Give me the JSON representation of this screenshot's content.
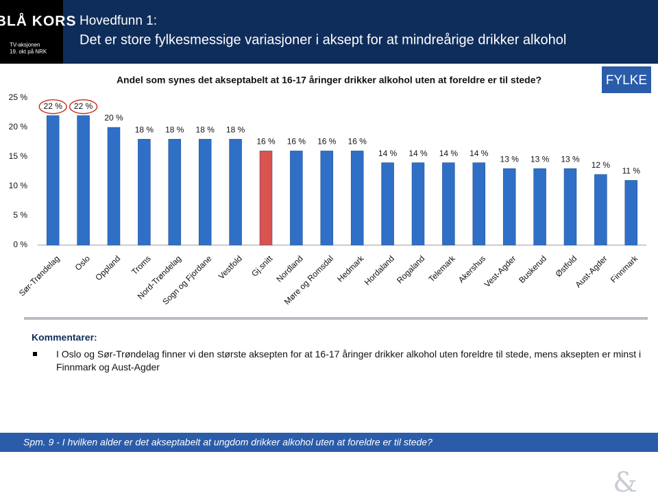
{
  "header": {
    "logo": "+BLÅ KORS",
    "logo_sub1": "TV-aksjonen",
    "logo_sub2": "19. okt på NRK",
    "title1": "Hovedfunn 1:",
    "title2": "Det er store fylkesmessige variasjoner i aksept for at mindreårige drikker alkohol"
  },
  "badge": "FYLKE",
  "chart_data": {
    "type": "bar",
    "title": "Andel som synes det akseptabelt at 16-17 åringer drikker alkohol uten at foreldre er til stede?",
    "categories": [
      "Sør-Trøndelag",
      "Oslo",
      "Oppland",
      "Troms",
      "Nord-Trøndelag",
      "Sogn og Fjordane",
      "Vestfold",
      "Gj.snitt",
      "Nordland",
      "Møre og Romsdal",
      "Hedmark",
      "Hordaland",
      "Rogaland",
      "Telemark",
      "Akershus",
      "Vest-Agder",
      "Buskerud",
      "Østfold",
      "Aust-Agder",
      "Finnmark"
    ],
    "values": [
      22,
      22,
      20,
      18,
      18,
      18,
      18,
      16,
      16,
      16,
      16,
      14,
      14,
      14,
      14,
      13,
      13,
      13,
      12,
      11
    ],
    "value_labels": [
      "22 %",
      "22 %",
      "20 %",
      "18 %",
      "18 %",
      "18 %",
      "18 %",
      "16 %",
      "16 %",
      "16 %",
      "16 %",
      "14 %",
      "14 %",
      "14 %",
      "14 %",
      "13 %",
      "13 %",
      "13 %",
      "12 %",
      "11 %"
    ],
    "colors": [
      "#2f6fc6",
      "#2f6fc6",
      "#2f6fc6",
      "#2f6fc6",
      "#2f6fc6",
      "#2f6fc6",
      "#2f6fc6",
      "#d9534f",
      "#2f6fc6",
      "#2f6fc6",
      "#2f6fc6",
      "#2f6fc6",
      "#2f6fc6",
      "#2f6fc6",
      "#2f6fc6",
      "#2f6fc6",
      "#2f6fc6",
      "#2f6fc6",
      "#2f6fc6",
      "#2f6fc6"
    ],
    "ylim": [
      0,
      25
    ],
    "yticks": [
      {
        "value": 0,
        "label": "0 %"
      },
      {
        "value": 5,
        "label": "5 %"
      },
      {
        "value": 10,
        "label": "10 %"
      },
      {
        "value": 15,
        "label": "15 %"
      },
      {
        "value": 20,
        "label": "20 %"
      },
      {
        "value": 25,
        "label": "25 %"
      }
    ]
  },
  "comments": {
    "heading": "Kommentarer:",
    "items": [
      "I Oslo og Sør-Trøndelag finner vi den største aksepten for at 16-17 åringer drikker alkohol uten foreldre til stede, mens aksepten er minst i Finnmark og Aust-Agder"
    ]
  },
  "footer": {
    "question": "Spm. 9 - I hvilken alder er det akseptabelt at ungdom drikker alkohol uten at foreldre er til stede?",
    "mark": "&"
  }
}
